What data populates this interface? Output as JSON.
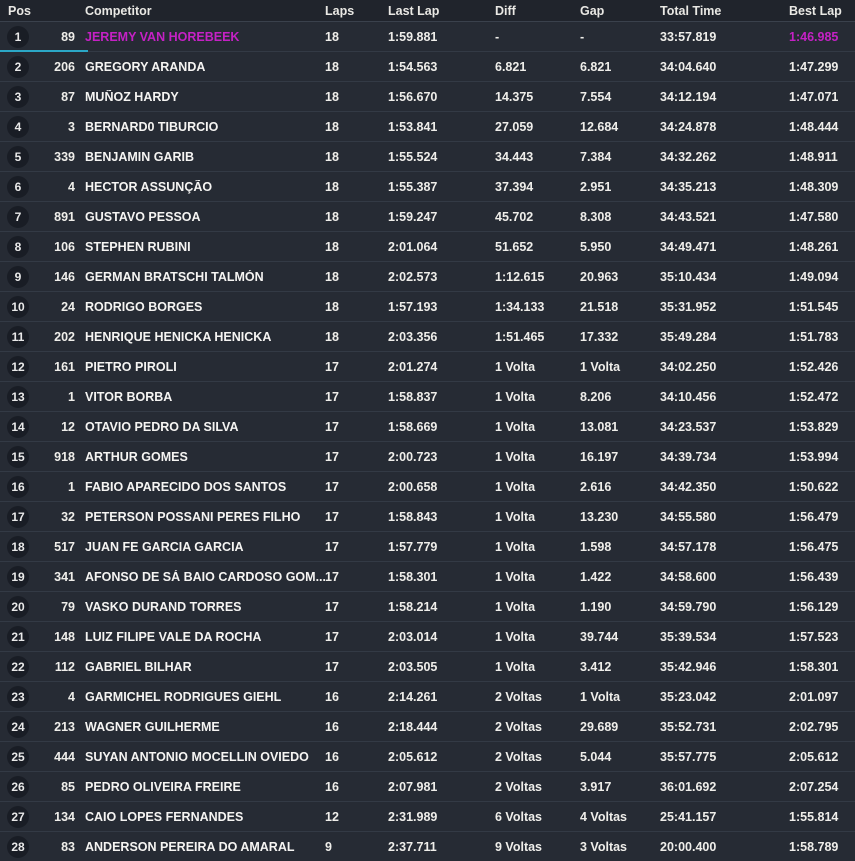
{
  "colors": {
    "background": "#262b34",
    "header_background": "#20242c",
    "accent_magenta": "#c521c5",
    "accent_cyan": "#2ba7c6"
  },
  "table": {
    "columns": [
      {
        "key": "pos",
        "label": "Pos"
      },
      {
        "key": "num",
        "label": ""
      },
      {
        "key": "name",
        "label": "Competitor"
      },
      {
        "key": "laps",
        "label": "Laps"
      },
      {
        "key": "last_lap",
        "label": "Last Lap"
      },
      {
        "key": "diff",
        "label": "Diff"
      },
      {
        "key": "gap",
        "label": "Gap"
      },
      {
        "key": "total_time",
        "label": "Total Time"
      },
      {
        "key": "best_lap",
        "label": "Best Lap"
      }
    ],
    "rows": [
      {
        "pos": "1",
        "num": "89",
        "name": "JEREMY VAN HOREBEEK",
        "laps": "18",
        "last_lap": "1:59.881",
        "diff": "-",
        "gap": "-",
        "total_time": "33:57.819",
        "best_lap": "1:46.985",
        "highlight": true
      },
      {
        "pos": "2",
        "num": "206",
        "name": "GREGORY ARANDA",
        "laps": "18",
        "last_lap": "1:54.563",
        "diff": "6.821",
        "gap": "6.821",
        "total_time": "34:04.640",
        "best_lap": "1:47.299"
      },
      {
        "pos": "3",
        "num": "87",
        "name": "MUÑOZ HARDY",
        "laps": "18",
        "last_lap": "1:56.670",
        "diff": "14.375",
        "gap": "7.554",
        "total_time": "34:12.194",
        "best_lap": "1:47.071"
      },
      {
        "pos": "4",
        "num": "3",
        "name": "BERNARD0 TIBURCIO",
        "laps": "18",
        "last_lap": "1:53.841",
        "diff": "27.059",
        "gap": "12.684",
        "total_time": "34:24.878",
        "best_lap": "1:48.444"
      },
      {
        "pos": "5",
        "num": "339",
        "name": "BENJAMIN GARIB",
        "laps": "18",
        "last_lap": "1:55.524",
        "diff": "34.443",
        "gap": "7.384",
        "total_time": "34:32.262",
        "best_lap": "1:48.911"
      },
      {
        "pos": "6",
        "num": "4",
        "name": "HECTOR ASSUNÇÃO",
        "laps": "18",
        "last_lap": "1:55.387",
        "diff": "37.394",
        "gap": "2.951",
        "total_time": "34:35.213",
        "best_lap": "1:48.309"
      },
      {
        "pos": "7",
        "num": "891",
        "name": "GUSTAVO PESSOA",
        "laps": "18",
        "last_lap": "1:59.247",
        "diff": "45.702",
        "gap": "8.308",
        "total_time": "34:43.521",
        "best_lap": "1:47.580"
      },
      {
        "pos": "8",
        "num": "106",
        "name": "STEPHEN RUBINI",
        "laps": "18",
        "last_lap": "2:01.064",
        "diff": "51.652",
        "gap": "5.950",
        "total_time": "34:49.471",
        "best_lap": "1:48.261"
      },
      {
        "pos": "9",
        "num": "146",
        "name": "GERMAN BRATSCHI TALMÓN",
        "laps": "18",
        "last_lap": "2:02.573",
        "diff": "1:12.615",
        "gap": "20.963",
        "total_time": "35:10.434",
        "best_lap": "1:49.094"
      },
      {
        "pos": "10",
        "num": "24",
        "name": "RODRIGO BORGES",
        "laps": "18",
        "last_lap": "1:57.193",
        "diff": "1:34.133",
        "gap": "21.518",
        "total_time": "35:31.952",
        "best_lap": "1:51.545"
      },
      {
        "pos": "11",
        "num": "202",
        "name": "HENRIQUE HENICKA HENICKA",
        "laps": "18",
        "last_lap": "2:03.356",
        "diff": "1:51.465",
        "gap": "17.332",
        "total_time": "35:49.284",
        "best_lap": "1:51.783"
      },
      {
        "pos": "12",
        "num": "161",
        "name": "PIETRO PIROLI",
        "laps": "17",
        "last_lap": "2:01.274",
        "diff": "1 Volta",
        "gap": "1 Volta",
        "total_time": "34:02.250",
        "best_lap": "1:52.426"
      },
      {
        "pos": "13",
        "num": "1",
        "name": "VITOR BORBA",
        "laps": "17",
        "last_lap": "1:58.837",
        "diff": "1 Volta",
        "gap": "8.206",
        "total_time": "34:10.456",
        "best_lap": "1:52.472"
      },
      {
        "pos": "14",
        "num": "12",
        "name": "OTAVIO PEDRO DA SILVA",
        "laps": "17",
        "last_lap": "1:58.669",
        "diff": "1 Volta",
        "gap": "13.081",
        "total_time": "34:23.537",
        "best_lap": "1:53.829"
      },
      {
        "pos": "15",
        "num": "918",
        "name": "ARTHUR GOMES",
        "laps": "17",
        "last_lap": "2:00.723",
        "diff": "1 Volta",
        "gap": "16.197",
        "total_time": "34:39.734",
        "best_lap": "1:53.994"
      },
      {
        "pos": "16",
        "num": "1",
        "name": "FABIO APARECIDO DOS SANTOS",
        "laps": "17",
        "last_lap": "2:00.658",
        "diff": "1 Volta",
        "gap": "2.616",
        "total_time": "34:42.350",
        "best_lap": "1:50.622"
      },
      {
        "pos": "17",
        "num": "32",
        "name": "PETERSON POSSANI PERES FILHO",
        "laps": "17",
        "last_lap": "1:58.843",
        "diff": "1 Volta",
        "gap": "13.230",
        "total_time": "34:55.580",
        "best_lap": "1:56.479"
      },
      {
        "pos": "18",
        "num": "517",
        "name": "JUAN FE GARCIA GARCIA",
        "laps": "17",
        "last_lap": "1:57.779",
        "diff": "1 Volta",
        "gap": "1.598",
        "total_time": "34:57.178",
        "best_lap": "1:56.475"
      },
      {
        "pos": "19",
        "num": "341",
        "name": "AFONSO DE SÁ BAIO CARDOSO GOM...",
        "laps": "17",
        "last_lap": "1:58.301",
        "diff": "1 Volta",
        "gap": "1.422",
        "total_time": "34:58.600",
        "best_lap": "1:56.439"
      },
      {
        "pos": "20",
        "num": "79",
        "name": "VASKO DURAND TORRES",
        "laps": "17",
        "last_lap": "1:58.214",
        "diff": "1 Volta",
        "gap": "1.190",
        "total_time": "34:59.790",
        "best_lap": "1:56.129"
      },
      {
        "pos": "21",
        "num": "148",
        "name": "LUIZ FILIPE VALE DA ROCHA",
        "laps": "17",
        "last_lap": "2:03.014",
        "diff": "1 Volta",
        "gap": "39.744",
        "total_time": "35:39.534",
        "best_lap": "1:57.523"
      },
      {
        "pos": "22",
        "num": "112",
        "name": "GABRIEL BILHAR",
        "laps": "17",
        "last_lap": "2:03.505",
        "diff": "1 Volta",
        "gap": "3.412",
        "total_time": "35:42.946",
        "best_lap": "1:58.301"
      },
      {
        "pos": "23",
        "num": "4",
        "name": "GARMICHEL RODRIGUES GIEHL",
        "laps": "16",
        "last_lap": "2:14.261",
        "diff": "2 Voltas",
        "gap": "1 Volta",
        "total_time": "35:23.042",
        "best_lap": "2:01.097"
      },
      {
        "pos": "24",
        "num": "213",
        "name": "WAGNER GUILHERME",
        "laps": "16",
        "last_lap": "2:18.444",
        "diff": "2 Voltas",
        "gap": "29.689",
        "total_time": "35:52.731",
        "best_lap": "2:02.795"
      },
      {
        "pos": "25",
        "num": "444",
        "name": "SUYAN ANTONIO MOCELLIN OVIEDO",
        "laps": "16",
        "last_lap": "2:05.612",
        "diff": "2 Voltas",
        "gap": "5.044",
        "total_time": "35:57.775",
        "best_lap": "2:05.612"
      },
      {
        "pos": "26",
        "num": "85",
        "name": "PEDRO OLIVEIRA FREIRE",
        "laps": "16",
        "last_lap": "2:07.981",
        "diff": "2 Voltas",
        "gap": "3.917",
        "total_time": "36:01.692",
        "best_lap": "2:07.254"
      },
      {
        "pos": "27",
        "num": "134",
        "name": "CAIO LOPES FERNANDES",
        "laps": "12",
        "last_lap": "2:31.989",
        "diff": "6 Voltas",
        "gap": "4 Voltas",
        "total_time": "25:41.157",
        "best_lap": "1:55.814"
      },
      {
        "pos": "28",
        "num": "83",
        "name": "ANDERSON PEREIRA DO AMARAL",
        "laps": "9",
        "last_lap": "2:37.711",
        "diff": "9 Voltas",
        "gap": "3 Voltas",
        "total_time": "20:00.400",
        "best_lap": "1:58.789"
      }
    ]
  }
}
